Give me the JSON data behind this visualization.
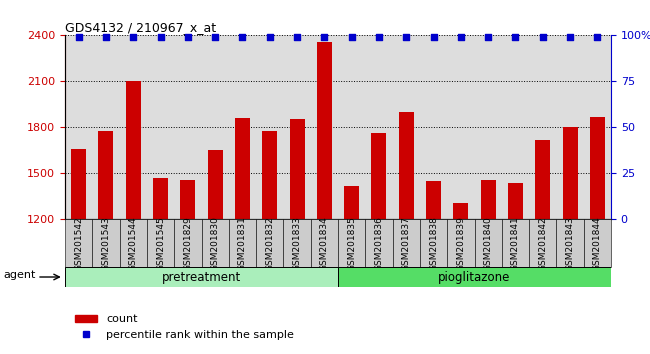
{
  "title": "GDS4132 / 210967_x_at",
  "categories": [
    "GSM201542",
    "GSM201543",
    "GSM201544",
    "GSM201545",
    "GSM201829",
    "GSM201830",
    "GSM201831",
    "GSM201832",
    "GSM201833",
    "GSM201834",
    "GSM201835",
    "GSM201836",
    "GSM201837",
    "GSM201838",
    "GSM201839",
    "GSM201840",
    "GSM201841",
    "GSM201842",
    "GSM201843",
    "GSM201844"
  ],
  "counts": [
    1660,
    1775,
    2105,
    1470,
    1455,
    1650,
    1860,
    1780,
    1855,
    2360,
    1415,
    1765,
    1900,
    1450,
    1310,
    1455,
    1440,
    1720,
    1800,
    1865
  ],
  "pretreatment_count": 10,
  "pioglitazone_count": 10,
  "ylim_left": [
    1200,
    2400
  ],
  "yticks_left": [
    1200,
    1500,
    1800,
    2100,
    2400
  ],
  "ylim_right": [
    0,
    100
  ],
  "yticks_right": [
    0,
    25,
    50,
    75,
    100
  ],
  "bar_color": "#cc0000",
  "scatter_color": "#0000cc",
  "pretreatment_color": "#aaeebb",
  "pioglitazone_color": "#55dd66",
  "agent_label": "agent",
  "pretreatment_label": "pretreatment",
  "pioglitazone_label": "pioglitazone",
  "legend_count_label": "count",
  "legend_percentile_label": "percentile rank within the sample",
  "plot_bg_color": "#dddddd",
  "left_axis_color": "#cc0000",
  "right_axis_color": "#0000cc",
  "tick_label_bg": "#cccccc",
  "grid_color": "#000000"
}
